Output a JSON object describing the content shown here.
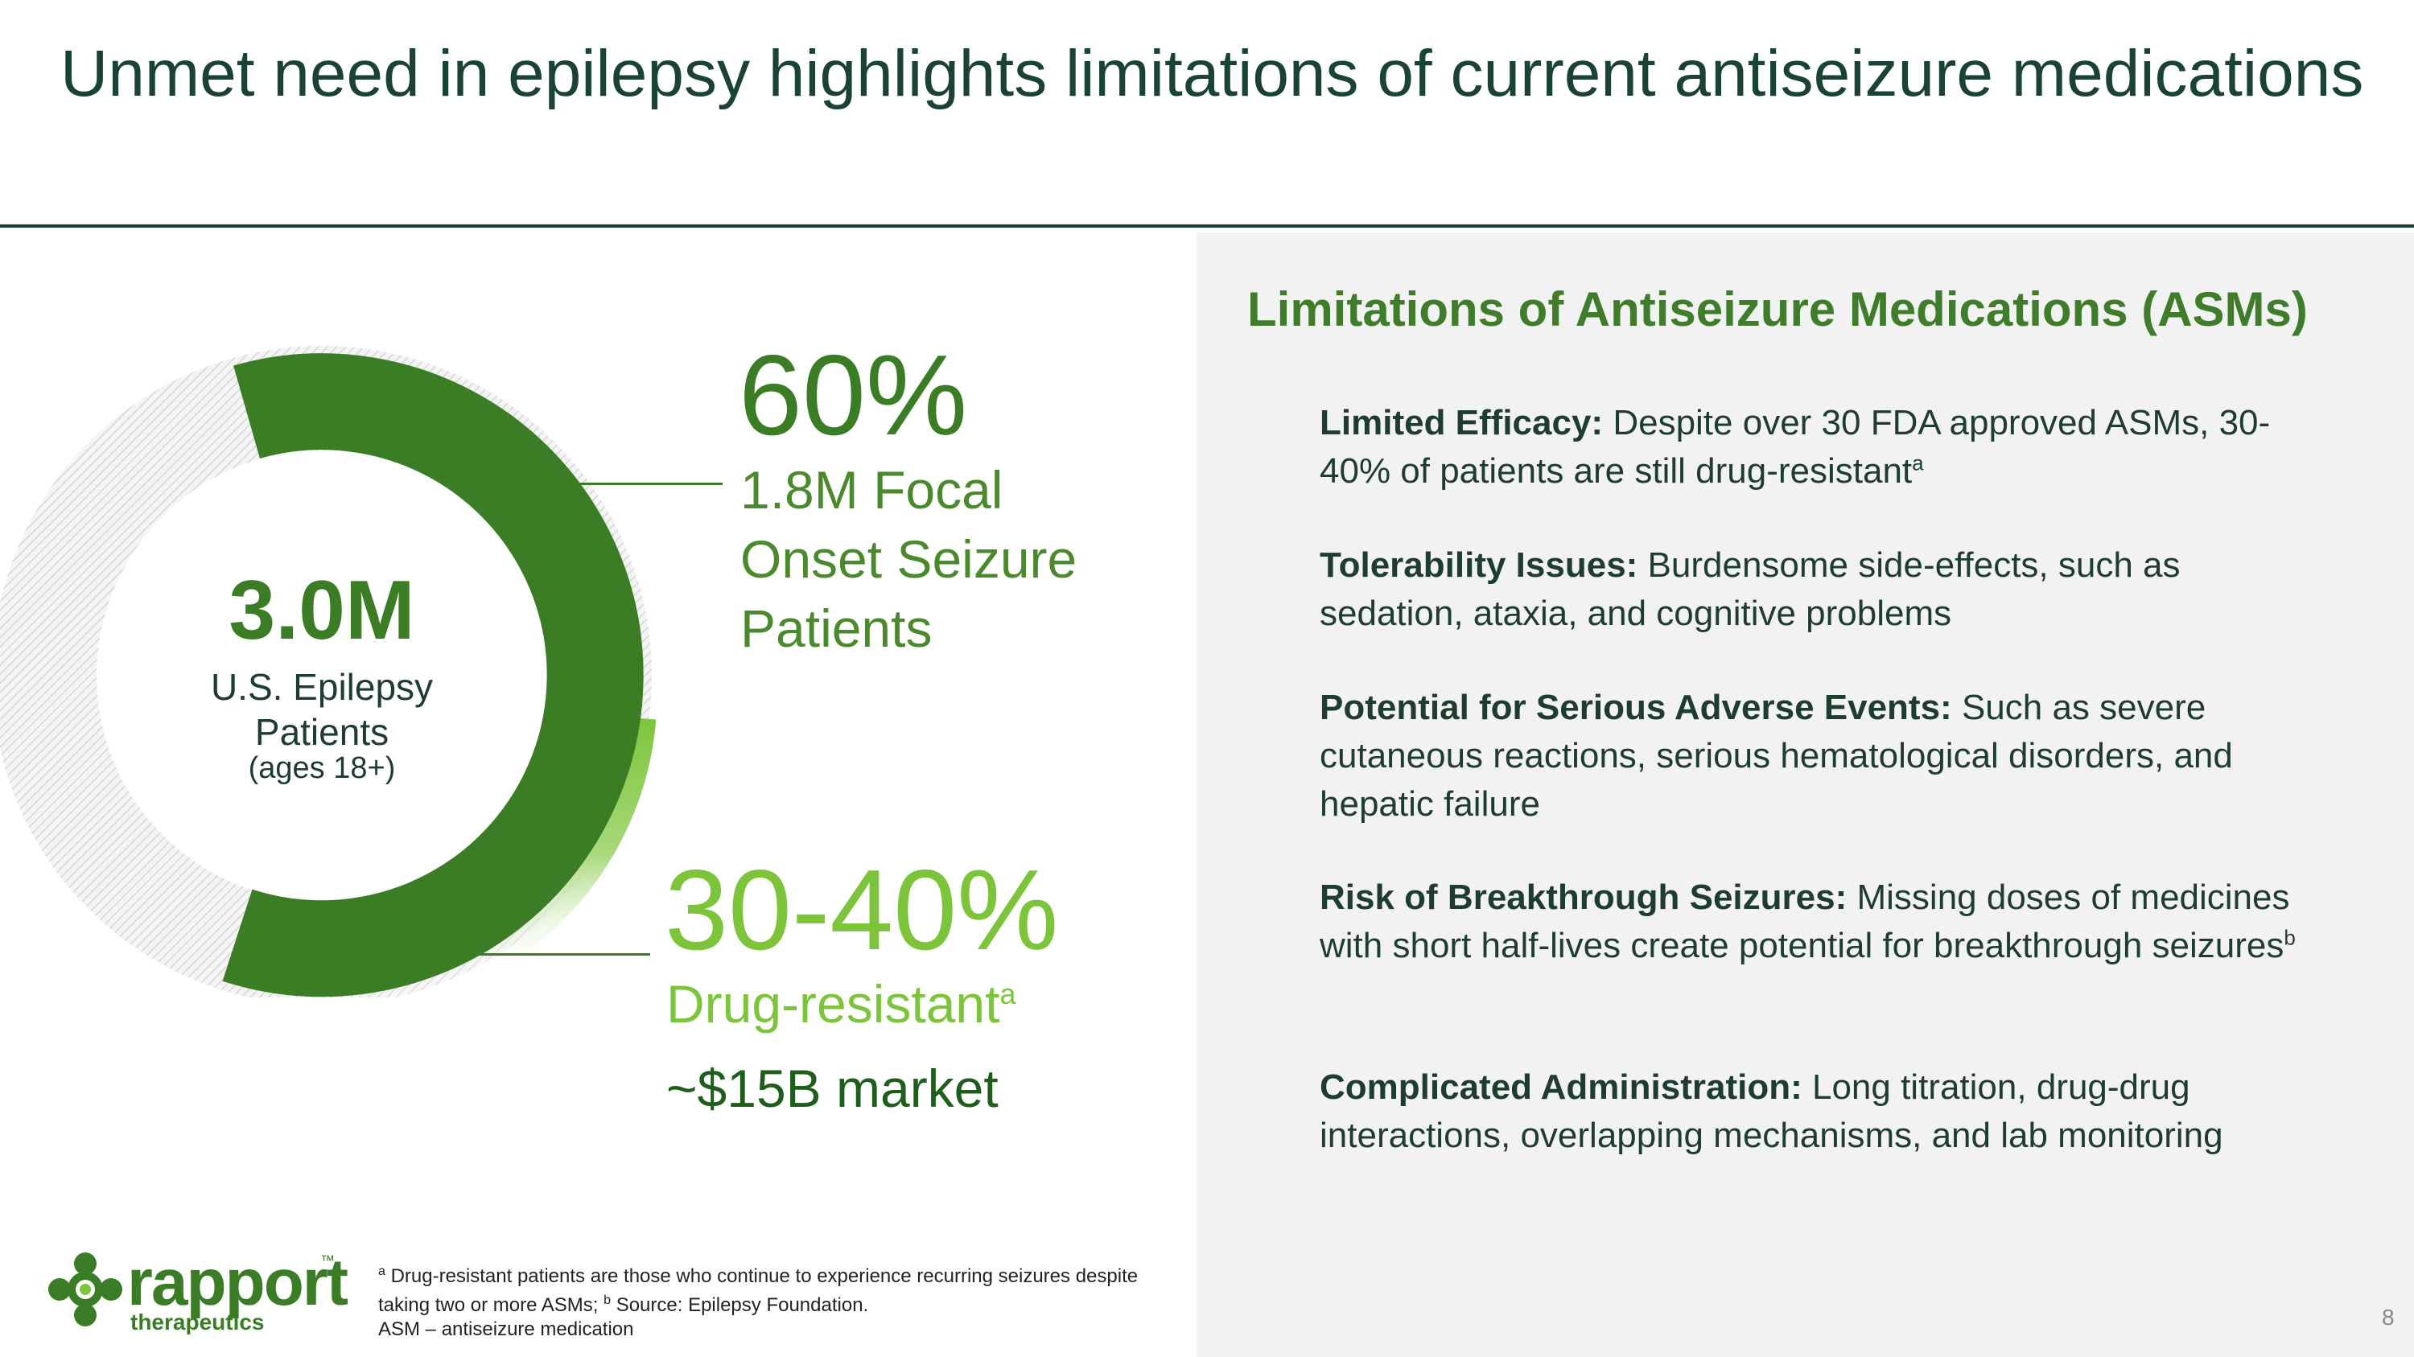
{
  "slide": {
    "title": "Unmet need in epilepsy highlights limitations of current antiseizure medications",
    "page_number": "8"
  },
  "donut": {
    "center_value": "3.0M",
    "center_label": "U.S. Epilepsy Patients",
    "center_sublabel": "(ages 18+)",
    "focal_share": 0.6,
    "colors": {
      "focal": "#3a7d25",
      "resistant": "#7cc53b",
      "other": "#d9d9d9"
    }
  },
  "stats": {
    "focal_percent": "60%",
    "focal_label": "1.8M Focal Onset Seizure Patients",
    "resistant_percent": "30-40%",
    "resistant_label": "Drug-resistant",
    "resistant_sup": "a",
    "market": "~$15B market"
  },
  "limitations": {
    "heading": "Limitations of Antiseizure Medications (ASMs)",
    "items": [
      {
        "label": "Limited Efficacy:",
        "text": " Despite over 30 FDA approved ASMs, 30-40% of patients are still drug-resistant",
        "sup": "a"
      },
      {
        "label": "Tolerability Issues:",
        "text": " Burdensome side-effects, such as sedation, ataxia, and cognitive problems",
        "sup": ""
      },
      {
        "label": "Potential for Serious Adverse Events:",
        "text": " Such as severe cutaneous reactions, serious hematological disorders, and hepatic failure",
        "sup": ""
      },
      {
        "label": "Risk of Breakthrough Seizures:",
        "text": " Missing doses of medicines with short half-lives create potential for breakthrough seizures",
        "sup": "b"
      },
      {
        "label": "Complicated Administration:",
        "text": " Long titration, drug-drug interactions, overlapping mechanisms, and lab monitoring",
        "sup": ""
      }
    ]
  },
  "footnote": {
    "sup_a": "a",
    "line1": "Drug-resistant patients are those who continue to experience recurring seizures despite taking two or more ASMs;",
    "sup_b": "b",
    "line1b": "Source: Epilepsy Foundation.",
    "line2": "ASM – antiseizure medication"
  },
  "logo": {
    "name": "rapport",
    "tm": "™",
    "sub": "therapeutics",
    "icon": "rapport-logo-icon"
  }
}
